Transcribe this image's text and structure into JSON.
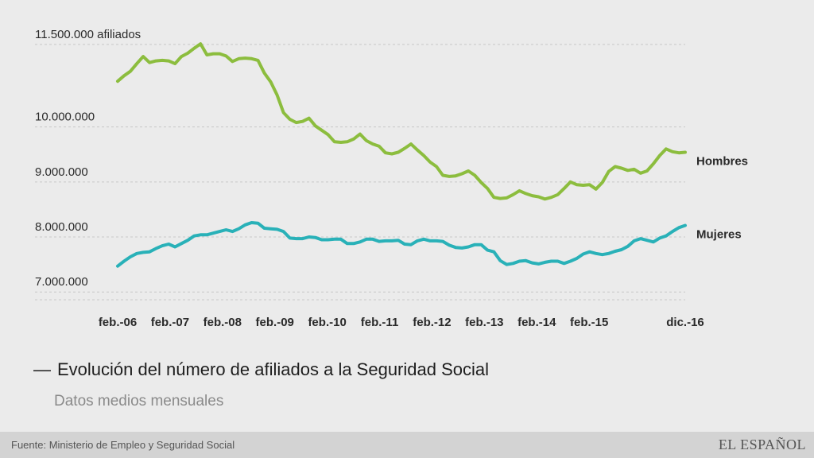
{
  "chart_data": {
    "type": "line",
    "title": "Evolución del número de afiliados a la Seguridad Social",
    "subtitle": "Datos medios mensuales",
    "source": "Fuente: Ministerio de Empleo y Seguridad Social",
    "ylim": [
      6700000,
      11700000
    ],
    "y_ticks": [
      {
        "value": 7000000,
        "label": "7.000.000"
      },
      {
        "value": 8000000,
        "label": "8.000.000"
      },
      {
        "value": 9000000,
        "label": "9.000.000"
      },
      {
        "value": 10000000,
        "label": "10.000.000"
      },
      {
        "value": 11500000,
        "label": "11.500.000 afiliados"
      }
    ],
    "x_ticks": [
      "feb.-06",
      "feb.-07",
      "feb.-08",
      "feb.-09",
      "feb.-10",
      "feb.-11",
      "feb.-12",
      "feb.-13",
      "feb.-14",
      "feb.-15",
      "dic.-16"
    ],
    "x_start": "feb.-06",
    "x_end": "dic.-16",
    "grid": true,
    "series": [
      {
        "name": "Hombres",
        "color": "#8cbd3e",
        "values": [
          10830000,
          10930000,
          11010000,
          11150000,
          11280000,
          11170000,
          11200000,
          11210000,
          11200000,
          11150000,
          11280000,
          11340000,
          11430000,
          11510000,
          11310000,
          11330000,
          11330000,
          11290000,
          11190000,
          11240000,
          11250000,
          11240000,
          11210000,
          10980000,
          10820000,
          10580000,
          10260000,
          10140000,
          10080000,
          10100000,
          10160000,
          10020000,
          9940000,
          9860000,
          9730000,
          9720000,
          9730000,
          9780000,
          9870000,
          9750000,
          9690000,
          9650000,
          9530000,
          9510000,
          9540000,
          9610000,
          9690000,
          9580000,
          9480000,
          9360000,
          9280000,
          9120000,
          9100000,
          9110000,
          9150000,
          9200000,
          9120000,
          8990000,
          8880000,
          8720000,
          8700000,
          8710000,
          8770000,
          8840000,
          8790000,
          8750000,
          8730000,
          8690000,
          8720000,
          8770000,
          8880000,
          9000000,
          8950000,
          8940000,
          8950000,
          8870000,
          8990000,
          9190000,
          9280000,
          9250000,
          9210000,
          9230000,
          9160000,
          9200000,
          9330000,
          9480000,
          9600000,
          9550000,
          9530000,
          9540000
        ]
      },
      {
        "name": "Mujeres",
        "color": "#29b1b8",
        "values": [
          7470000,
          7560000,
          7640000,
          7700000,
          7720000,
          7730000,
          7790000,
          7840000,
          7870000,
          7820000,
          7880000,
          7940000,
          8020000,
          8040000,
          8040000,
          8070000,
          8100000,
          8130000,
          8100000,
          8150000,
          8220000,
          8260000,
          8250000,
          8160000,
          8150000,
          8140000,
          8100000,
          7980000,
          7970000,
          7970000,
          8000000,
          7990000,
          7950000,
          7950000,
          7960000,
          7960000,
          7880000,
          7880000,
          7910000,
          7960000,
          7960000,
          7920000,
          7930000,
          7930000,
          7940000,
          7870000,
          7860000,
          7930000,
          7960000,
          7930000,
          7930000,
          7920000,
          7850000,
          7810000,
          7800000,
          7820000,
          7860000,
          7860000,
          7760000,
          7730000,
          7570000,
          7500000,
          7520000,
          7560000,
          7570000,
          7530000,
          7510000,
          7540000,
          7560000,
          7560000,
          7520000,
          7560000,
          7610000,
          7690000,
          7730000,
          7700000,
          7680000,
          7700000,
          7740000,
          7770000,
          7830000,
          7930000,
          7970000,
          7940000,
          7910000,
          7980000,
          8020000,
          8100000,
          8170000,
          8210000
        ]
      }
    ]
  },
  "branding": {
    "logo": "EL ESPAÑOL"
  }
}
